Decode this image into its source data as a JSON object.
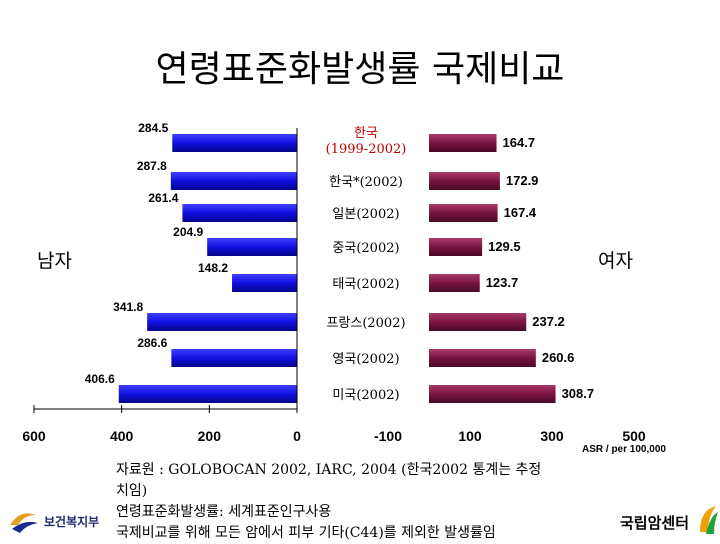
{
  "title": "연령표준화발생률 국제비교",
  "left_label": "남자",
  "right_label": "여자",
  "asr_note": "ASR / per 100,000",
  "footnotes": [
    "자료원 : GOLOBOCAN 2002, IARC, 2004 (한국2002 통계는 추정",
    "치임)",
    "연령표준화발생률: 세계표준인구사용",
    "국제비교를 위해 모든 암에서 피부 기타(C44)를 제외한 발생률임"
  ],
  "logos": {
    "left_text": "보건복지부",
    "right_text": "국립암센터"
  },
  "colors": {
    "male_bar": "#1010e0",
    "female_bar": "#7a1440"
  },
  "chart_data": [
    {
      "type": "bar",
      "orientation": "horizontal",
      "series": [
        {
          "name": "남자",
          "values": [
            284.5,
            287.8,
            261.4,
            204.9,
            148.2,
            341.8,
            286.6,
            406.6
          ]
        }
      ],
      "categories": [
        "한국\n(1999-2002)",
        "한국*(2002)",
        "일본(2002)",
        "중국(2002)",
        "태국(2002)",
        "프랑스(2002)",
        "영국(2002)",
        "미국(2002)"
      ],
      "value_labels": [
        "284.5",
        "287.8",
        "261.4",
        "204.9",
        "148.2",
        "341.8",
        "286.6",
        "406.6"
      ],
      "x_ticks": [
        "600",
        "400",
        "200",
        "0"
      ],
      "xlim": [
        600,
        0
      ]
    },
    {
      "type": "bar",
      "orientation": "horizontal",
      "series": [
        {
          "name": "여자",
          "values": [
            164.7,
            172.9,
            167.4,
            129.5,
            123.7,
            237.2,
            260.6,
            308.7
          ]
        }
      ],
      "categories": [
        "한국\n(1999-2002)",
        "한국*(2002)",
        "일본(2002)",
        "중국(2002)",
        "태국(2002)",
        "프랑스(2002)",
        "영국(2002)",
        "미국(2002)"
      ],
      "value_labels": [
        "164.7",
        "172.9",
        "167.4",
        "129.5",
        "123.7",
        "237.2",
        "260.6",
        "308.7"
      ],
      "x_ticks": [
        "-100",
        "100",
        "300",
        "500"
      ],
      "xlim": [
        -100,
        500
      ]
    }
  ]
}
